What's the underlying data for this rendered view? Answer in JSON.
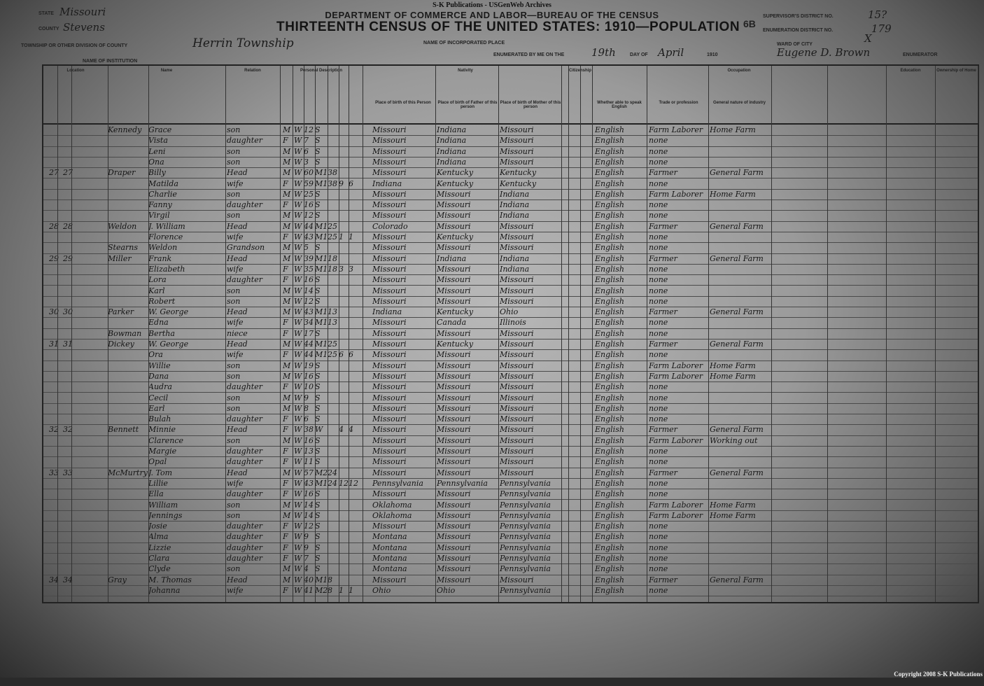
{
  "publisher": "S-K Publications - USGenWeb Archives",
  "department": "DEPARTMENT OF COMMERCE AND LABOR—BUREAU OF THE CENSUS",
  "title": "THIRTEENTH CENSUS OF THE UNITED STATES: 1910—POPULATION",
  "sheet_number": "6B",
  "header_fields": {
    "state_label": "State",
    "state": "Missouri",
    "county_label": "County",
    "county": "Stevens",
    "township_label": "Township or other division of county",
    "township": "Herrin Township",
    "incorporated_label": "Name of incorporated place",
    "institution_label": "Name of institution",
    "enumerated_label": "Enumerated by me on the",
    "enumerated_day": "19th",
    "day_of_label": "day of",
    "month": "April",
    "year": "1910",
    "enumerator": "Eugene D. Brown",
    "enumerator_label": "Enumerator",
    "supervisor_label": "Supervisor's District No.",
    "supervisor_no": "15?",
    "ed_label": "Enumeration District No.",
    "ed_no": "179",
    "ward_label": "Ward of city",
    "ward": "X"
  },
  "column_groups": [
    "Location",
    "Name",
    "Relation",
    "Personal Description",
    "Nativity",
    "Citizenship",
    "Occupation",
    "Education",
    "Ownership of Home"
  ],
  "column_headers": [
    "Place of birth of this Person",
    "Place of birth of Father of this person",
    "Place of birth of Mother of this person",
    "Whether able to speak English",
    "Trade or profession",
    "General nature of industry"
  ],
  "rows": [
    [
      "",
      "",
      "Kennedy",
      "Grace",
      "son",
      "M",
      "W",
      "12",
      "S",
      "",
      "",
      "",
      "Missouri",
      "Indiana",
      "Missouri",
      "English",
      "Farm Laborer",
      "Home Farm"
    ],
    [
      "",
      "",
      "",
      "Vista",
      "daughter",
      "F",
      "W",
      "7",
      "S",
      "",
      "",
      "",
      "Missouri",
      "Indiana",
      "Missouri",
      "English",
      "none",
      ""
    ],
    [
      "",
      "",
      "",
      "Leni",
      "son",
      "M",
      "W",
      "6",
      "S",
      "",
      "",
      "",
      "Missouri",
      "Indiana",
      "Missouri",
      "English",
      "none",
      ""
    ],
    [
      "",
      "",
      "",
      "Ona",
      "son",
      "M",
      "W",
      "3",
      "S",
      "",
      "",
      "",
      "Missouri",
      "Indiana",
      "Missouri",
      "English",
      "none",
      ""
    ],
    [
      "27",
      "27",
      "Draper",
      "Billy",
      "Head",
      "M",
      "W",
      "60",
      "M1",
      "38",
      "",
      "",
      "Missouri",
      "Kentucky",
      "Kentucky",
      "English",
      "Farmer",
      "General Farm"
    ],
    [
      "",
      "",
      "",
      "Matilda",
      "wife",
      "F",
      "W",
      "59",
      "M1",
      "38",
      "9",
      "6",
      "Indiana",
      "Kentucky",
      "Kentucky",
      "English",
      "none",
      ""
    ],
    [
      "",
      "",
      "",
      "Charlie",
      "son",
      "M",
      "W",
      "25",
      "S",
      "",
      "",
      "",
      "Missouri",
      "Missouri",
      "Indiana",
      "English",
      "Farm Laborer",
      "Home Farm"
    ],
    [
      "",
      "",
      "",
      "Fanny",
      "daughter",
      "F",
      "W",
      "16",
      "S",
      "",
      "",
      "",
      "Missouri",
      "Missouri",
      "Indiana",
      "English",
      "none",
      ""
    ],
    [
      "",
      "",
      "",
      "Virgil",
      "son",
      "M",
      "W",
      "12",
      "S",
      "",
      "",
      "",
      "Missouri",
      "Missouri",
      "Indiana",
      "English",
      "none",
      ""
    ],
    [
      "28",
      "28",
      "Weldon",
      "J. William",
      "Head",
      "M",
      "W",
      "44",
      "M1",
      "25",
      "",
      "",
      "Colorado",
      "Missouri",
      "Missouri",
      "English",
      "Farmer",
      "General Farm"
    ],
    [
      "",
      "",
      "",
      "Florence",
      "wife",
      "F",
      "W",
      "43",
      "M1",
      "25",
      "1",
      "1",
      "Missouri",
      "Kentucky",
      "Missouri",
      "English",
      "none",
      ""
    ],
    [
      "",
      "",
      "Stearns",
      "Weldon",
      "Grandson",
      "M",
      "W",
      "5",
      "S",
      "",
      "",
      "",
      "Missouri",
      "Missouri",
      "Missouri",
      "English",
      "none",
      ""
    ],
    [
      "29",
      "29",
      "Miller",
      "Frank",
      "Head",
      "M",
      "W",
      "39",
      "M1",
      "18",
      "",
      "",
      "Missouri",
      "Indiana",
      "Indiana",
      "English",
      "Farmer",
      "General Farm"
    ],
    [
      "",
      "",
      "",
      "Elizabeth",
      "wife",
      "F",
      "W",
      "35",
      "M1",
      "18",
      "3",
      "3",
      "Missouri",
      "Missouri",
      "Indiana",
      "English",
      "none",
      ""
    ],
    [
      "",
      "",
      "",
      "Lora",
      "daughter",
      "F",
      "W",
      "16",
      "S",
      "",
      "",
      "",
      "Missouri",
      "Missouri",
      "Missouri",
      "English",
      "none",
      ""
    ],
    [
      "",
      "",
      "",
      "Karl",
      "son",
      "M",
      "W",
      "14",
      "S",
      "",
      "",
      "",
      "Missouri",
      "Missouri",
      "Missouri",
      "English",
      "none",
      ""
    ],
    [
      "",
      "",
      "",
      "Robert",
      "son",
      "M",
      "W",
      "12",
      "S",
      "",
      "",
      "",
      "Missouri",
      "Missouri",
      "Missouri",
      "English",
      "none",
      ""
    ],
    [
      "30",
      "30",
      "Parker",
      "W. George",
      "Head",
      "M",
      "W",
      "43",
      "M1",
      "13",
      "",
      "",
      "Indiana",
      "Kentucky",
      "Ohio",
      "English",
      "Farmer",
      "General Farm"
    ],
    [
      "",
      "",
      "",
      "Edna",
      "wife",
      "F",
      "W",
      "34",
      "M1",
      "13",
      "",
      "",
      "Missouri",
      "Canada",
      "Illinois",
      "English",
      "none",
      ""
    ],
    [
      "",
      "",
      "Bowman",
      "Bertha",
      "niece",
      "F",
      "W",
      "17",
      "S",
      "",
      "",
      "",
      "Missouri",
      "Missouri",
      "Missouri",
      "English",
      "none",
      ""
    ],
    [
      "31",
      "31",
      "Dickey",
      "W. George",
      "Head",
      "M",
      "W",
      "44",
      "M1",
      "25",
      "",
      "",
      "Missouri",
      "Kentucky",
      "Missouri",
      "English",
      "Farmer",
      "General Farm"
    ],
    [
      "",
      "",
      "",
      "Ora",
      "wife",
      "F",
      "W",
      "44",
      "M1",
      "25",
      "6",
      "6",
      "Missouri",
      "Missouri",
      "Missouri",
      "English",
      "none",
      ""
    ],
    [
      "",
      "",
      "",
      "Willie",
      "son",
      "M",
      "W",
      "19",
      "S",
      "",
      "",
      "",
      "Missouri",
      "Missouri",
      "Missouri",
      "English",
      "Farm Laborer",
      "Home Farm"
    ],
    [
      "",
      "",
      "",
      "Dana",
      "son",
      "M",
      "W",
      "16",
      "S",
      "",
      "",
      "",
      "Missouri",
      "Missouri",
      "Missouri",
      "English",
      "Farm Laborer",
      "Home Farm"
    ],
    [
      "",
      "",
      "",
      "Audra",
      "daughter",
      "F",
      "W",
      "10",
      "S",
      "",
      "",
      "",
      "Missouri",
      "Missouri",
      "Missouri",
      "English",
      "none",
      ""
    ],
    [
      "",
      "",
      "",
      "Cecil",
      "son",
      "M",
      "W",
      "9",
      "S",
      "",
      "",
      "",
      "Missouri",
      "Missouri",
      "Missouri",
      "English",
      "none",
      ""
    ],
    [
      "",
      "",
      "",
      "Earl",
      "son",
      "M",
      "W",
      "8",
      "S",
      "",
      "",
      "",
      "Missouri",
      "Missouri",
      "Missouri",
      "English",
      "none",
      ""
    ],
    [
      "",
      "",
      "",
      "Bulah",
      "daughter",
      "F",
      "W",
      "6",
      "S",
      "",
      "",
      "",
      "Missouri",
      "Missouri",
      "Missouri",
      "English",
      "none",
      ""
    ],
    [
      "32",
      "32",
      "Bennett",
      "Minnie",
      "Head",
      "F",
      "W",
      "38",
      "W",
      "",
      "4",
      "4",
      "Missouri",
      "Missouri",
      "Missouri",
      "English",
      "Farmer",
      "General Farm"
    ],
    [
      "",
      "",
      "",
      "Clarence",
      "son",
      "M",
      "W",
      "16",
      "S",
      "",
      "",
      "",
      "Missouri",
      "Missouri",
      "Missouri",
      "English",
      "Farm Laborer",
      "Working out"
    ],
    [
      "",
      "",
      "",
      "Margie",
      "daughter",
      "F",
      "W",
      "13",
      "S",
      "",
      "",
      "",
      "Missouri",
      "Missouri",
      "Missouri",
      "English",
      "none",
      ""
    ],
    [
      "",
      "",
      "",
      "Opal",
      "daughter",
      "F",
      "W",
      "11",
      "S",
      "",
      "",
      "",
      "Missouri",
      "Missouri",
      "Missouri",
      "English",
      "none",
      ""
    ],
    [
      "33",
      "33",
      "McMurtry",
      "J. Tom",
      "Head",
      "M",
      "W",
      "57",
      "M2",
      "24",
      "",
      "",
      "Missouri",
      "Missouri",
      "Missouri",
      "English",
      "Farmer",
      "General Farm"
    ],
    [
      "",
      "",
      "",
      "Lillie",
      "wife",
      "F",
      "W",
      "43",
      "M1",
      "24",
      "12",
      "12",
      "Pennsylvania",
      "Pennsylvania",
      "Pennsylvania",
      "English",
      "none",
      ""
    ],
    [
      "",
      "",
      "",
      "Ella",
      "daughter",
      "F",
      "W",
      "16",
      "S",
      "",
      "",
      "",
      "Missouri",
      "Missouri",
      "Pennsylvania",
      "English",
      "none",
      ""
    ],
    [
      "",
      "",
      "",
      "William",
      "son",
      "M",
      "W",
      "14",
      "S",
      "",
      "",
      "",
      "Oklahoma",
      "Missouri",
      "Pennsylvania",
      "English",
      "Farm Laborer",
      "Home Farm"
    ],
    [
      "",
      "",
      "",
      "Jennings",
      "son",
      "M",
      "W",
      "14",
      "S",
      "",
      "",
      "",
      "Oklahoma",
      "Missouri",
      "Pennsylvania",
      "English",
      "Farm Laborer",
      "Home Farm"
    ],
    [
      "",
      "",
      "",
      "Josie",
      "daughter",
      "F",
      "W",
      "12",
      "S",
      "",
      "",
      "",
      "Missouri",
      "Missouri",
      "Pennsylvania",
      "English",
      "none",
      ""
    ],
    [
      "",
      "",
      "",
      "Alma",
      "daughter",
      "F",
      "W",
      "9",
      "S",
      "",
      "",
      "",
      "Montana",
      "Missouri",
      "Pennsylvania",
      "English",
      "none",
      ""
    ],
    [
      "",
      "",
      "",
      "Lizzie",
      "daughter",
      "F",
      "W",
      "9",
      "S",
      "",
      "",
      "",
      "Montana",
      "Missouri",
      "Pennsylvania",
      "English",
      "none",
      ""
    ],
    [
      "",
      "",
      "",
      "Clara",
      "daughter",
      "F",
      "W",
      "7",
      "S",
      "",
      "",
      "",
      "Montana",
      "Missouri",
      "Pennsylvania",
      "English",
      "none",
      ""
    ],
    [
      "",
      "",
      "",
      "Clyde",
      "son",
      "M",
      "W",
      "4",
      "S",
      "",
      "",
      "",
      "Montana",
      "Missouri",
      "Pennsylvania",
      "English",
      "none",
      ""
    ],
    [
      "34",
      "34",
      "Gray",
      "M. Thomas",
      "Head",
      "M",
      "W",
      "40",
      "M1",
      "8",
      "",
      "",
      "Missouri",
      "Missouri",
      "Missouri",
      "English",
      "Farmer",
      "General Farm"
    ],
    [
      "",
      "",
      "",
      "Johanna",
      "wife",
      "F",
      "W",
      "41",
      "M2",
      "8",
      "1",
      "1",
      "Ohio",
      "Ohio",
      "Pennsylvania",
      "English",
      "none",
      ""
    ]
  ],
  "copyright": "Copyright 2008 S-K Publications"
}
